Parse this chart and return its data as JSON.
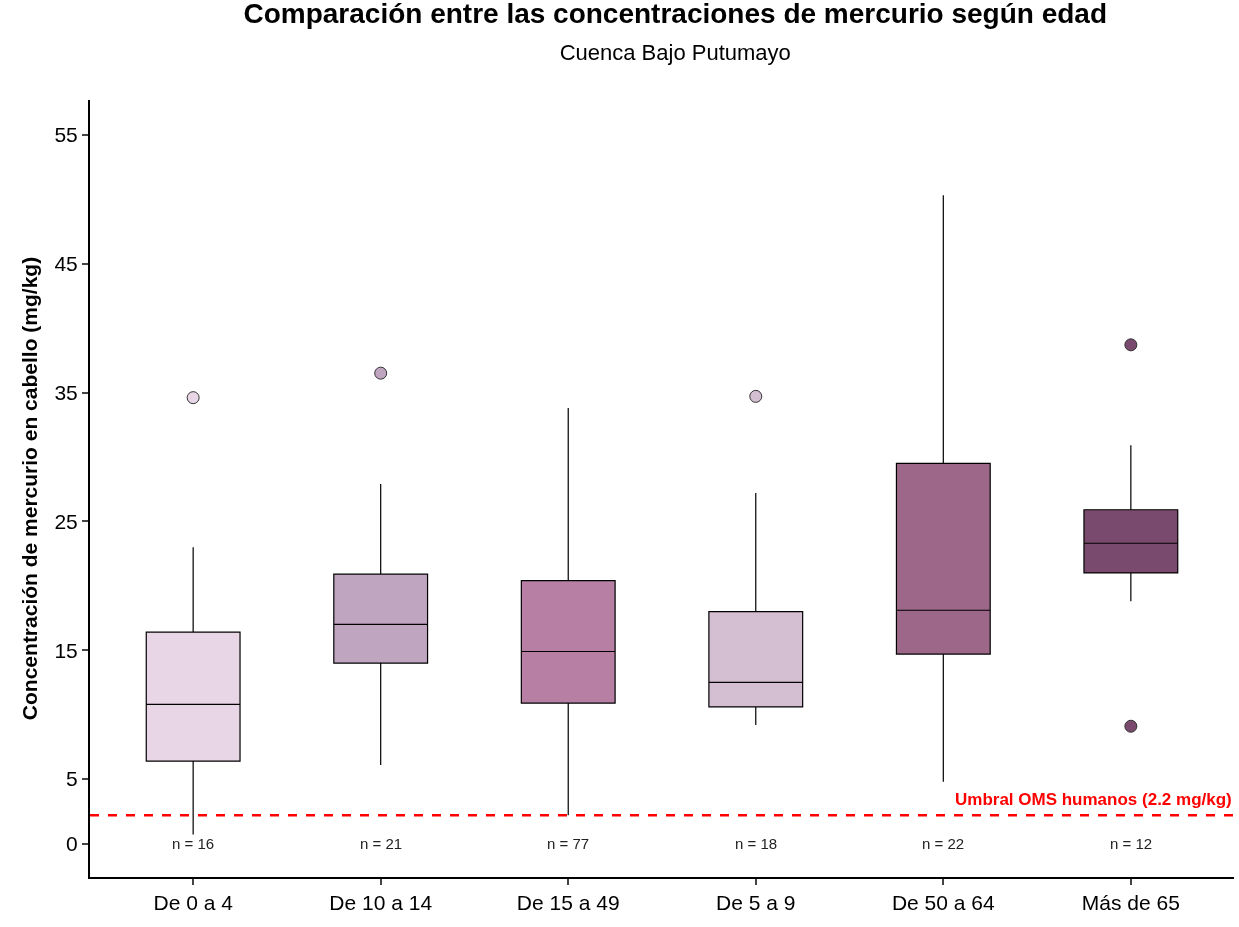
{
  "chart_data": {
    "type": "box",
    "title": "Comparación entre las concentraciones de mercurio según edad",
    "subtitle": "Cuenca Bajo Putumayo",
    "ylabel": "Concentración de mercurio en cabello (mg/kg)",
    "categories": [
      "De 0 a 4",
      "De 10 a 14",
      "De 15 a 49",
      "De 5 a 9",
      "De 50 a 64",
      "Más de 65"
    ],
    "colors": [
      "#e8d5e6",
      "#c0a5c0",
      "#b87fa5",
      "#d4bed2",
      "#9c6788",
      "#7a4a6e"
    ],
    "boxes": [
      {
        "low": 0.7,
        "q1": 6.4,
        "median": 10.8,
        "q3": 16.4,
        "high": 23.0,
        "outliers": [
          34.6
        ]
      },
      {
        "low": 6.1,
        "q1": 14.0,
        "median": 17.0,
        "q3": 20.9,
        "high": 27.9,
        "outliers": [
          36.5
        ]
      },
      {
        "low": 2.2,
        "q1": 10.9,
        "median": 14.9,
        "q3": 20.4,
        "high": 33.8
      },
      {
        "low": 9.2,
        "q1": 10.6,
        "median": 12.5,
        "q3": 18.0,
        "high": 27.2,
        "outliers": [
          34.7
        ]
      },
      {
        "low": 4.8,
        "q1": 14.7,
        "median": 18.1,
        "q3": 29.5,
        "high": 50.3
      },
      {
        "low": 18.8,
        "q1": 21.0,
        "median": 23.3,
        "q3": 25.9,
        "high": 30.9,
        "outliers": [
          38.7,
          9.1
        ]
      }
    ],
    "ylim": [
      -2.6,
      57.7
    ],
    "yticks": [
      0,
      5,
      15,
      25,
      35,
      45,
      55
    ],
    "ref_lines": [
      {
        "axis": "y",
        "value": 2.2,
        "label": "Umbral OMS humanos (2.2 mg/kg)",
        "color": "#ff0000",
        "line_style": "dashed"
      }
    ],
    "annotations": [
      "n = 16",
      "n = 21",
      "n = 77",
      "n = 18",
      "n = 22",
      "n = 12"
    ],
    "grid": false
  }
}
